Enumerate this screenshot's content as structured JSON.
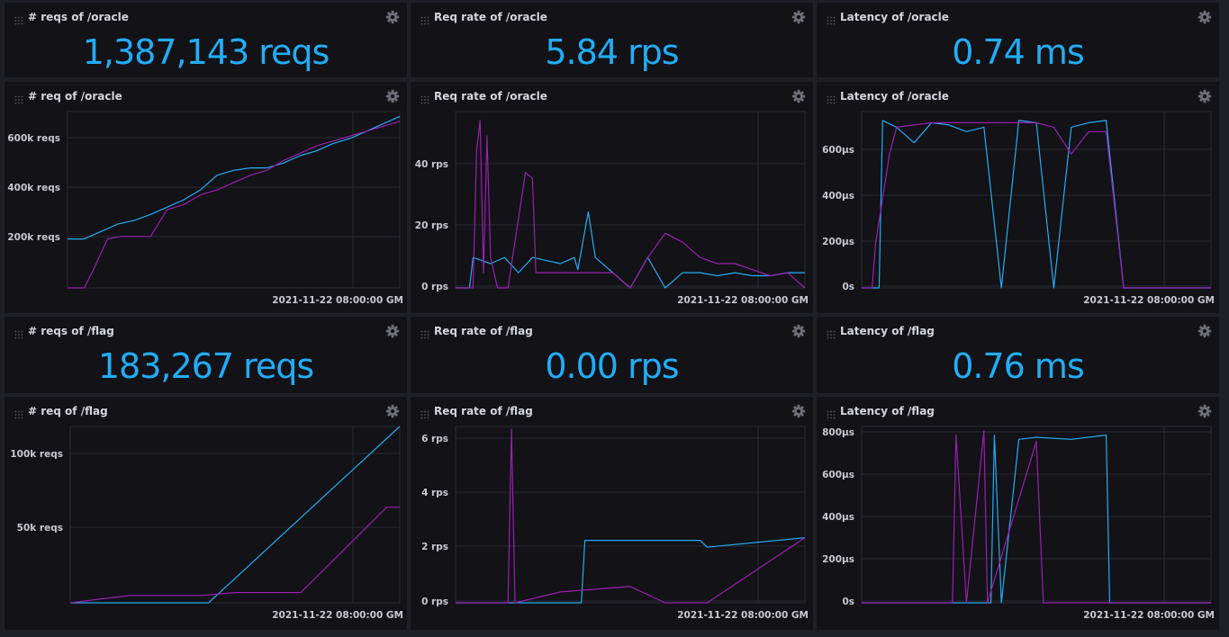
{
  "colors": {
    "cyan": "#22adf6",
    "magenta": "#9c1fb0",
    "panel_bg": "#121217",
    "page_bg": "#1f1f26",
    "grid": "#2a2a33"
  },
  "icons": {
    "drag": "drag-handle-icon",
    "settings": "gear-icon"
  },
  "stats": [
    {
      "title": "# reqs of /oracle",
      "value": "1,387,143 reqs"
    },
    {
      "title": "Req rate of /oracle",
      "value": "5.84 rps"
    },
    {
      "title": "Latency of /oracle",
      "value": "0.74 ms"
    },
    {
      "title": "# reqs of /flag",
      "value": "183,267 reqs"
    },
    {
      "title": "Req rate of /flag",
      "value": "0.00 rps"
    },
    {
      "title": "Latency of /flag",
      "value": "0.76 ms"
    }
  ],
  "graphs": [
    {
      "title": "# req of /oracle",
      "x_label": "2021-11-22 08:00:00 GM",
      "y_ticks": [
        "600k reqs",
        "400k reqs",
        "200k reqs"
      ]
    },
    {
      "title": "Req rate of /oracle",
      "x_label": "2021-11-22 08:00:00 GM",
      "y_ticks": [
        "40 rps",
        "20 rps",
        "0 rps"
      ]
    },
    {
      "title": "Latency of /oracle",
      "x_label": "2021-11-22 08:00:00 GM",
      "y_ticks": [
        "600µs",
        "400µs",
        "200µs",
        "0s"
      ]
    },
    {
      "title": "# req of /flag",
      "x_label": "2021-11-22 08:00:00 GM",
      "y_ticks": [
        "100k reqs",
        "50k reqs"
      ]
    },
    {
      "title": "Req rate of /flag",
      "x_label": "2021-11-22 08:00:00 GM",
      "y_ticks": [
        "6 rps",
        "4 rps",
        "2 rps",
        "0 rps"
      ]
    },
    {
      "title": "Latency of /flag",
      "x_label": "2021-11-22 08:00:00 GM",
      "y_ticks": [
        "800µs",
        "600µs",
        "400µs",
        "200µs",
        "0s"
      ]
    }
  ],
  "chart_data": [
    {
      "type": "line",
      "title": "# req of /oracle",
      "xlabel": "2021-11-22 08:00:00 GM",
      "ylabel": "",
      "ylim": [
        0,
        720000
      ],
      "series": [
        {
          "x": [
            0,
            5,
            10,
            15,
            20,
            25,
            30,
            35,
            40,
            45,
            50,
            55,
            60,
            65,
            70,
            75,
            80,
            85,
            90,
            95,
            100
          ],
          "values": [
            200000,
            200000,
            230000,
            260000,
            275000,
            300000,
            330000,
            360000,
            400000,
            460000,
            480000,
            490000,
            490000,
            510000,
            540000,
            560000,
            590000,
            610000,
            640000,
            670000,
            700000
          ]
        },
        {
          "x": [
            0,
            5,
            8,
            12,
            16,
            20,
            25,
            30,
            35,
            40,
            45,
            50,
            55,
            60,
            65,
            70,
            75,
            80,
            85,
            90,
            95,
            100
          ],
          "values": [
            0,
            0,
            80000,
            200000,
            210000,
            210000,
            210000,
            320000,
            340000,
            380000,
            400000,
            430000,
            460000,
            480000,
            520000,
            550000,
            580000,
            600000,
            620000,
            640000,
            660000,
            680000
          ]
        }
      ]
    },
    {
      "type": "line",
      "title": "Req rate of /oracle",
      "xlabel": "2021-11-22 08:00:00 GM",
      "ylabel": "",
      "ylim": [
        0,
        58
      ],
      "series": [
        {
          "x": [
            0,
            4,
            5,
            10,
            14,
            18,
            22,
            26,
            30,
            34,
            35,
            38,
            40,
            45,
            50,
            55,
            60,
            65,
            70,
            75,
            80,
            85,
            90,
            95,
            100
          ],
          "values": [
            0,
            0,
            10,
            8,
            10,
            5,
            10,
            9,
            8,
            10,
            6,
            25,
            10,
            5,
            0,
            10,
            0,
            5,
            5,
            4,
            5,
            4,
            4,
            5,
            5
          ]
        },
        {
          "x": [
            0,
            5,
            6,
            7,
            8,
            9,
            10,
            12,
            15,
            20,
            22,
            23,
            25,
            30,
            35,
            40,
            45,
            50,
            55,
            60,
            65,
            70,
            75,
            80,
            85,
            90,
            95,
            100
          ],
          "values": [
            0,
            0,
            45,
            55,
            5,
            50,
            10,
            0,
            0,
            38,
            36,
            5,
            5,
            5,
            5,
            5,
            5,
            0,
            10,
            18,
            15,
            10,
            8,
            8,
            6,
            4,
            5,
            0
          ]
        }
      ]
    },
    {
      "type": "line",
      "title": "Latency of /oracle",
      "xlabel": "2021-11-22 08:00:00 GM",
      "ylabel": "",
      "ylim": [
        0,
        790
      ],
      "series": [
        {
          "x": [
            0,
            5,
            6,
            10,
            15,
            20,
            25,
            30,
            35,
            40,
            45,
            50,
            55,
            60,
            65,
            70,
            75,
            100
          ],
          "values": [
            0,
            0,
            750,
            720,
            650,
            740,
            730,
            700,
            720,
            0,
            750,
            740,
            0,
            720,
            740,
            750,
            0,
            0
          ]
        },
        {
          "x": [
            0,
            3,
            4,
            8,
            10,
            15,
            20,
            30,
            40,
            50,
            55,
            60,
            65,
            70,
            75,
            100
          ],
          "values": [
            0,
            0,
            200,
            600,
            720,
            730,
            740,
            740,
            740,
            740,
            720,
            600,
            700,
            700,
            0,
            0
          ]
        }
      ]
    },
    {
      "type": "line",
      "title": "# req of /flag",
      "xlabel": "2021-11-22 08:00:00 GM",
      "ylabel": "",
      "ylim": [
        0,
        120000
      ],
      "series": [
        {
          "x": [
            0,
            20,
            42,
            100
          ],
          "values": [
            0,
            0,
            0,
            120000
          ]
        },
        {
          "x": [
            0,
            18,
            40,
            50,
            70,
            96,
            100
          ],
          "values": [
            0,
            5000,
            5000,
            7000,
            7000,
            65000,
            65000
          ]
        }
      ]
    },
    {
      "type": "line",
      "title": "Req rate of /flag",
      "xlabel": "2021-11-22 08:00:00 GM",
      "ylabel": "",
      "ylim": [
        0,
        6.5
      ],
      "series": [
        {
          "x": [
            0,
            36,
            37,
            38,
            50,
            60,
            70,
            72,
            100
          ],
          "values": [
            0,
            0,
            2.3,
            2.3,
            2.3,
            2.3,
            2.3,
            2.05,
            2.4
          ]
        },
        {
          "x": [
            0,
            15,
            16,
            17,
            30,
            40,
            50,
            60,
            70,
            72,
            100
          ],
          "values": [
            0,
            0,
            6.4,
            0,
            0.4,
            0.5,
            0.6,
            0,
            0,
            0,
            2.4
          ]
        }
      ]
    },
    {
      "type": "line",
      "title": "Latency of /flag",
      "xlabel": "2021-11-22 08:00:00 GM",
      "ylabel": "",
      "ylim": [
        0,
        820
      ],
      "series": [
        {
          "x": [
            0,
            37,
            38,
            40,
            45,
            50,
            60,
            70,
            71,
            100
          ],
          "values": [
            0,
            0,
            780,
            0,
            760,
            770,
            760,
            780,
            0,
            0
          ]
        },
        {
          "x": [
            0,
            26,
            27,
            30,
            35,
            36,
            50,
            52,
            100
          ],
          "values": [
            0,
            0,
            780,
            0,
            800,
            0,
            750,
            0,
            0
          ]
        }
      ]
    }
  ]
}
